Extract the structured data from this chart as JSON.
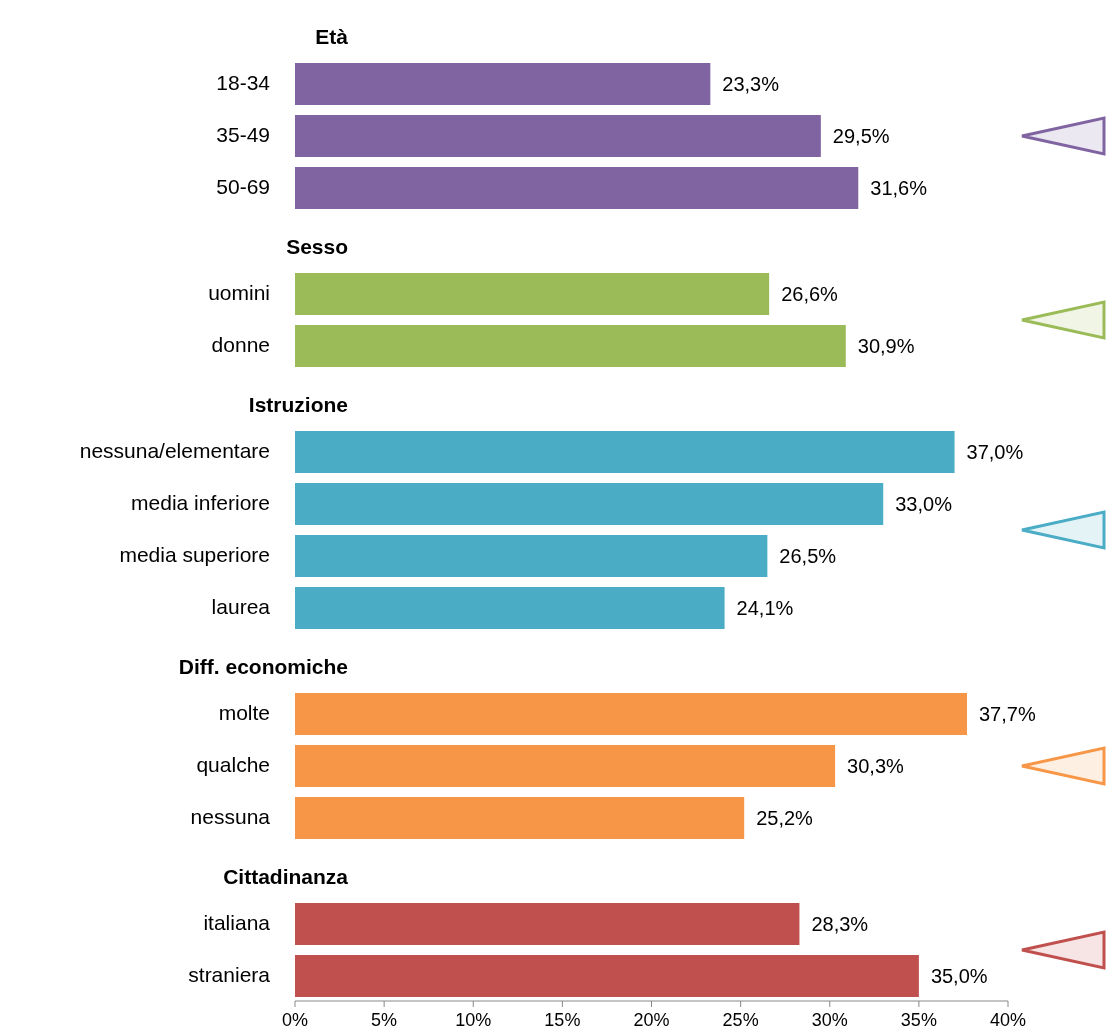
{
  "chart_data": {
    "type": "bar",
    "orientation": "horizontal",
    "categories": [
      "Età",
      "18-34",
      "35-49",
      "50-69",
      "Sesso",
      "uomini",
      "donne",
      "Istruzione",
      "nessuna/elementare",
      "media inferiore",
      "media superiore",
      "laurea",
      "Diff. economiche",
      "molte",
      "qualche",
      "nessuna",
      "Cittadinanza",
      "italiana",
      "straniera"
    ],
    "values": [
      null,
      23.3,
      29.5,
      31.6,
      null,
      26.6,
      30.9,
      null,
      37.0,
      33.0,
      26.5,
      24.1,
      null,
      37.7,
      30.3,
      25.2,
      null,
      28.3,
      35.0
    ],
    "colors": [
      null,
      "#8064a2",
      "#8064a2",
      "#8064a2",
      null,
      "#9bbb59",
      "#9bbb59",
      null,
      "#4bacc6",
      "#4bacc6",
      "#4bacc6",
      "#4bacc6",
      null,
      "#f79646",
      "#f79646",
      "#f79646",
      null,
      "#c0504d",
      "#c0504d"
    ],
    "value_labels": [
      null,
      "23,3%",
      "29,5%",
      "31,6%",
      null,
      "26,6%",
      "30,9%",
      null,
      "37,0%",
      "33,0%",
      "26,5%",
      "24,1%",
      null,
      "37,7%",
      "30,3%",
      "25,2%",
      null,
      "28,3%",
      "35,0%"
    ],
    "xlim": [
      0,
      40
    ],
    "xticks": [
      {
        "value": 0,
        "label": "0%"
      },
      {
        "value": 5,
        "label": "5%"
      },
      {
        "value": 10,
        "label": "10%"
      },
      {
        "value": 15,
        "label": "15%"
      },
      {
        "value": 20,
        "label": "20%"
      },
      {
        "value": 25,
        "label": "25%"
      },
      {
        "value": 30,
        "label": "30%"
      },
      {
        "value": 35,
        "label": "35%"
      },
      {
        "value": 40,
        "label": "40%"
      }
    ],
    "grid": false
  }
}
